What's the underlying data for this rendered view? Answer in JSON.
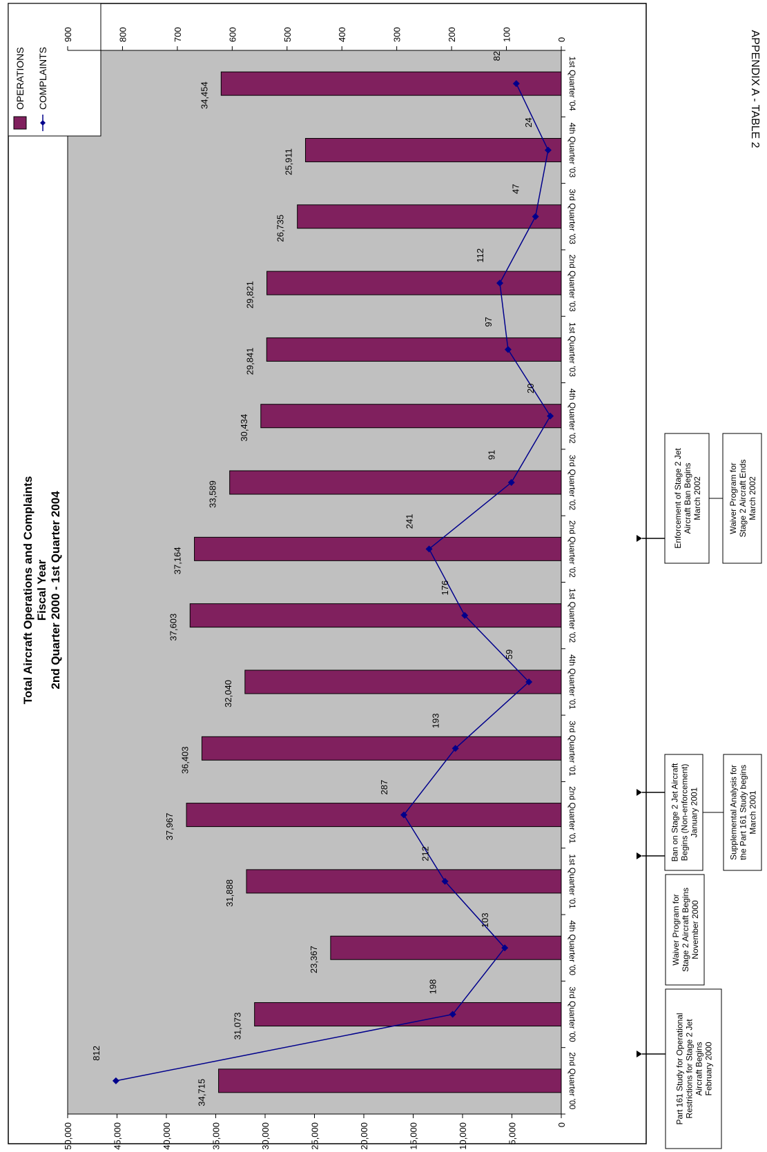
{
  "appendix_label": "APPENDIX A - TABLE 2",
  "chart_data": {
    "type": "bar",
    "title": "Total Aircraft Operations and Complaints",
    "subtitle_1": "Fiscal Year",
    "subtitle_2": "2nd Quarter 2000 - 1st Quarter 2004",
    "categories": [
      "2nd Quarter '00",
      "3rd Quarter '00",
      "4th Quarter '00",
      "1st Quarter '01",
      "2nd Quarter '01",
      "3rd Quarter '01",
      "4th Quarter '01",
      "1st Quarter '02",
      "2nd Quarter '02",
      "3rd Quarter '02",
      "4th Quarter '02",
      "1st Quarter '03",
      "2nd Quarter '03",
      "3rd Quarter '03",
      "4th Quarter '03",
      "1st Quarter '04"
    ],
    "series": [
      {
        "name": "OPERATIONS",
        "type": "bar",
        "color": "#80205e",
        "values": [
          34715,
          31073,
          23367,
          31888,
          37967,
          36403,
          32040,
          37603,
          37164,
          33589,
          30434,
          29841,
          29821,
          26735,
          25911,
          34454
        ],
        "labels": [
          "34,715",
          "31,073",
          "23,367",
          "31,888",
          "37,967",
          "36,403",
          "32,040",
          "37,603",
          "37,164",
          "33,589",
          "30,434",
          "29,841",
          "29,821",
          "26,735",
          "25,911",
          "34,454"
        ]
      },
      {
        "name": "COMPLAINTS",
        "type": "line",
        "color": "#00008b",
        "values": [
          812,
          198,
          103,
          212,
          287,
          193,
          59,
          176,
          241,
          91,
          20,
          97,
          112,
          47,
          24,
          82
        ],
        "labels": [
          "812",
          "198",
          "103",
          "212",
          "287",
          "193",
          "59",
          "176",
          "241",
          "91",
          "20",
          "97",
          "112",
          "47",
          "24",
          "82"
        ]
      }
    ],
    "operations_axis": {
      "range": [
        0,
        50000
      ],
      "ticks": [
        "0",
        "5,000",
        "10,000",
        "15,000",
        "20,000",
        "25,000",
        "30,000",
        "35,000",
        "40,000",
        "45,000",
        "50,000"
      ]
    },
    "complaints_axis": {
      "range": [
        0,
        900
      ],
      "ticks": [
        "0",
        "100",
        "200",
        "300",
        "400",
        "500",
        "600",
        "700",
        "800",
        "900"
      ]
    },
    "legend_position": "top-right",
    "plot_background": "#c0c0c0"
  },
  "annotations": [
    {
      "lines": [
        "Part 161 Study for Operational",
        "Restrictions for Stage 2 Jet",
        "Aircraft Begins",
        "February 2000"
      ],
      "category_index": 0
    },
    {
      "lines": [
        "Waiver Program for",
        "Stage 2 Aircraft Begins",
        "November 2000"
      ],
      "category_index": 3
    },
    {
      "lines": [
        "Ban on Stage 2 Jet Aircraft",
        "Begins (Non-enforcement)",
        "January 2001"
      ],
      "category_index": 4
    },
    {
      "lines": [
        "Supplemental Analysis for",
        "the Part 161 Study begins",
        "March 2001"
      ],
      "category_index": 4
    },
    {
      "lines": [
        "Enforcement of Stage 2 Jet",
        "Aircraft Ban Begins",
        "March 2002"
      ],
      "category_index": 8
    },
    {
      "lines": [
        "Waiver Program for",
        "Stage 2 Aircraft Ends",
        "March 2002"
      ],
      "category_index": 8
    }
  ]
}
